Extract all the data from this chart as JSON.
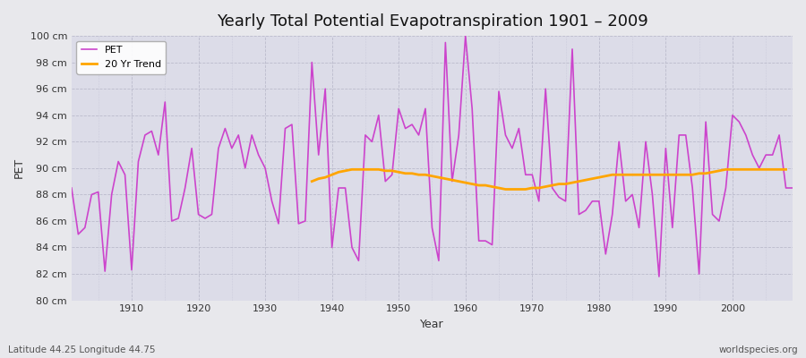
{
  "title": "Yearly Total Potential Evapotranspiration 1901 – 2009",
  "xlabel": "Year",
  "ylabel": "PET",
  "subtitle_left": "Latitude 44.25 Longitude 44.75",
  "subtitle_right": "worldspecies.org",
  "pet_color": "#CC44CC",
  "trend_color": "#FFA500",
  "fig_facecolor": "#E8E8EC",
  "ax_facecolor": "#DCDCE8",
  "ylim": [
    80,
    100
  ],
  "xlim": [
    1901,
    2009
  ],
  "yticks": [
    80,
    82,
    84,
    86,
    88,
    90,
    92,
    94,
    96,
    98,
    100
  ],
  "xticks": [
    1910,
    1920,
    1930,
    1940,
    1950,
    1960,
    1970,
    1980,
    1990,
    2000
  ],
  "years": [
    1901,
    1902,
    1903,
    1904,
    1905,
    1906,
    1907,
    1908,
    1909,
    1910,
    1911,
    1912,
    1913,
    1914,
    1915,
    1916,
    1917,
    1918,
    1919,
    1920,
    1921,
    1922,
    1923,
    1924,
    1925,
    1926,
    1927,
    1928,
    1929,
    1930,
    1931,
    1932,
    1933,
    1934,
    1935,
    1936,
    1937,
    1938,
    1939,
    1940,
    1941,
    1942,
    1943,
    1944,
    1945,
    1946,
    1947,
    1948,
    1949,
    1950,
    1951,
    1952,
    1953,
    1954,
    1955,
    1956,
    1957,
    1958,
    1959,
    1960,
    1961,
    1962,
    1963,
    1964,
    1965,
    1966,
    1967,
    1968,
    1969,
    1970,
    1971,
    1972,
    1973,
    1974,
    1975,
    1976,
    1977,
    1978,
    1979,
    1980,
    1981,
    1982,
    1983,
    1984,
    1985,
    1986,
    1987,
    1988,
    1989,
    1990,
    1991,
    1992,
    1993,
    1994,
    1995,
    1996,
    1997,
    1998,
    1999,
    2000,
    2001,
    2002,
    2003,
    2004,
    2005,
    2006,
    2007,
    2008,
    2009
  ],
  "pet_values": [
    88.5,
    85.0,
    85.5,
    88.0,
    88.2,
    82.2,
    88.0,
    90.5,
    89.5,
    82.3,
    90.5,
    92.5,
    92.8,
    91.0,
    95.0,
    86.0,
    86.2,
    88.5,
    91.5,
    86.5,
    86.2,
    86.5,
    91.5,
    93.0,
    91.5,
    92.5,
    90.0,
    92.5,
    91.0,
    90.0,
    87.5,
    85.8,
    93.0,
    93.3,
    85.8,
    86.0,
    98.0,
    91.0,
    96.0,
    84.0,
    88.5,
    88.5,
    84.0,
    83.0,
    92.5,
    92.0,
    94.0,
    89.0,
    89.5,
    94.5,
    93.0,
    93.3,
    92.5,
    94.5,
    85.5,
    83.0,
    99.5,
    89.0,
    92.5,
    100.0,
    94.5,
    84.5,
    84.5,
    84.2,
    95.8,
    92.5,
    91.5,
    93.0,
    89.5,
    89.5,
    87.5,
    96.0,
    88.5,
    87.8,
    87.5,
    99.0,
    86.5,
    86.8,
    87.5,
    87.5,
    83.5,
    86.5,
    92.0,
    87.5,
    88.0,
    85.5,
    92.0,
    88.0,
    81.8,
    91.5,
    85.5,
    92.5,
    92.5,
    88.5,
    82.0,
    93.5,
    86.5,
    86.0,
    88.5,
    94.0,
    93.5,
    92.5,
    91.0,
    90.0,
    91.0,
    91.0,
    92.5,
    88.5,
    88.5
  ],
  "trend_start_year": 1937,
  "trend_values": [
    89.0,
    89.2,
    89.3,
    89.5,
    89.7,
    89.8,
    89.9,
    89.9,
    89.9,
    89.9,
    89.9,
    89.8,
    89.8,
    89.7,
    89.6,
    89.6,
    89.5,
    89.5,
    89.4,
    89.3,
    89.2,
    89.1,
    89.0,
    88.9,
    88.8,
    88.7,
    88.7,
    88.6,
    88.5,
    88.4,
    88.4,
    88.4,
    88.4,
    88.5,
    88.5,
    88.6,
    88.7,
    88.8,
    88.8,
    88.9,
    89.0,
    89.1,
    89.2,
    89.3,
    89.4,
    89.5,
    89.5,
    89.5,
    89.5,
    89.5,
    89.5,
    89.5,
    89.5,
    89.5,
    89.5,
    89.5,
    89.5,
    89.5,
    89.6,
    89.6,
    89.7,
    89.8,
    89.9,
    89.9,
    89.9,
    89.9,
    89.9,
    89.9,
    89.9,
    89.9,
    89.9,
    89.9
  ]
}
